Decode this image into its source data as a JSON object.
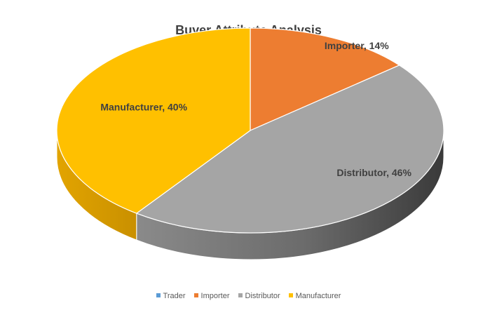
{
  "chart_data": {
    "type": "pie",
    "title": "Buyer Attribute  Analysis",
    "categories": [
      "Trader",
      "Importer",
      "Distributor",
      "Manufacturer"
    ],
    "values": [
      0,
      14,
      46,
      40
    ],
    "labels": [
      "",
      "Importer, 14%",
      "Distributor, 46%",
      "Manufacturer, 40%"
    ],
    "colors": [
      "#5B9BD5",
      "#ED7D31",
      "#A5A5A5",
      "#FFC000"
    ],
    "legend_position": "bottom",
    "style": "3d"
  }
}
